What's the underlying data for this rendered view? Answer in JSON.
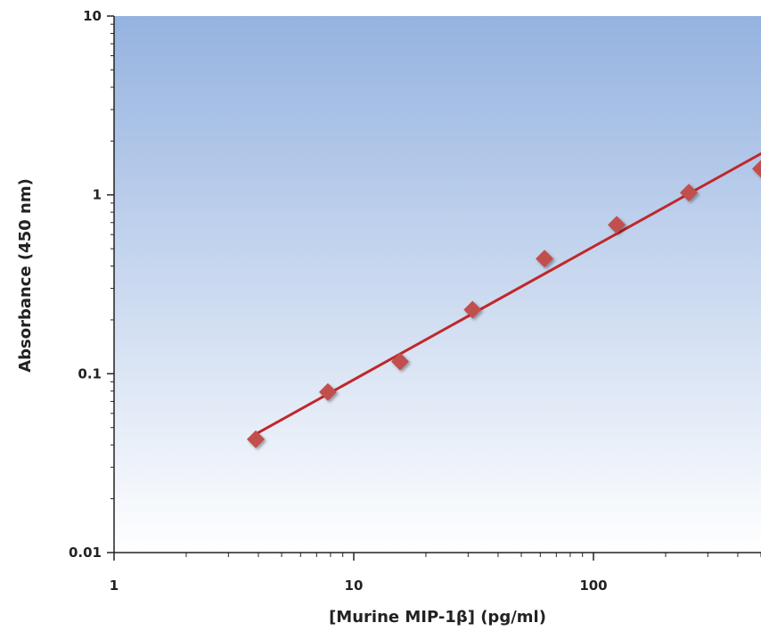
{
  "chart_data": {
    "type": "scatter",
    "title": "",
    "xlabel": "[Murine MIP-1β] (pg/ml)",
    "ylabel": "Absorbance (450 nm)",
    "x_scale": "log",
    "y_scale": "log",
    "xlim": [
      1,
      500
    ],
    "ylim": [
      0.01,
      10
    ],
    "x_ticks": [
      {
        "value": 1,
        "label": "1"
      },
      {
        "value": 10,
        "label": "10"
      },
      {
        "value": 100,
        "label": "100"
      }
    ],
    "y_ticks": [
      {
        "value": 10,
        "label": "10"
      },
      {
        "value": 1,
        "label": "1"
      },
      {
        "value": 0.1,
        "label": "0.1"
      },
      {
        "value": 0.01,
        "label": "0.01"
      }
    ],
    "series": [
      {
        "points": [
          {
            "x": 3.9,
            "y": 0.043
          },
          {
            "x": 7.8,
            "y": 0.079
          },
          {
            "x": 15.6,
            "y": 0.117
          },
          {
            "x": 31.3,
            "y": 0.228
          },
          {
            "x": 62.5,
            "y": 0.44
          },
          {
            "x": 125,
            "y": 0.68
          },
          {
            "x": 250,
            "y": 1.03
          },
          {
            "x": 500,
            "y": 1.4
          }
        ]
      }
    ],
    "fit_line": {
      "x_start": 3.9,
      "y_start": 0.046,
      "x_end": 500,
      "y_end": 1.7
    },
    "grid": false,
    "background": "gradient blue-to-white (top to bottom)",
    "colors": {
      "marker": "#c0504d",
      "line": "#c0282a",
      "bg_top": "#95b3e0",
      "bg_bottom": "#ffffff"
    }
  }
}
